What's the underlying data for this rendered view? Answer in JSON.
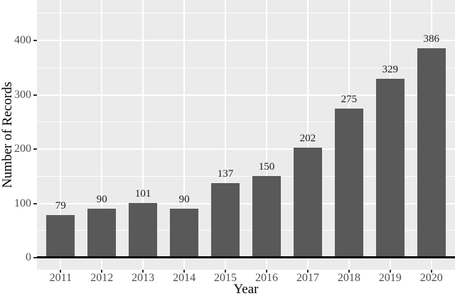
{
  "chart_data": {
    "type": "bar",
    "title": "",
    "xlabel": "Year",
    "ylabel": "Number of Records",
    "categories": [
      "2011",
      "2012",
      "2013",
      "2014",
      "2015",
      "2016",
      "2017",
      "2018",
      "2019",
      "2020"
    ],
    "values": [
      79,
      90,
      101,
      90,
      137,
      150,
      202,
      275,
      329,
      386
    ],
    "y_major_ticks": [
      0,
      100,
      200,
      300,
      400
    ],
    "y_minor_gridlines": [
      50,
      150,
      250,
      350,
      450
    ],
    "ylim": [
      0,
      450
    ],
    "grid": "on",
    "legend": "none",
    "bar_value_labels_shown": true,
    "style": {
      "bar_fill": "#595959",
      "panel_bg": "#EBEBEB",
      "grid_color": "#FFFFFF",
      "tick_label_color": "#4D4D4D",
      "axis_title_color": "#000000",
      "bar_label_color": "#1A1A1A",
      "zero_line_color": "#000000",
      "tick_mark_color": "#333333"
    }
  }
}
